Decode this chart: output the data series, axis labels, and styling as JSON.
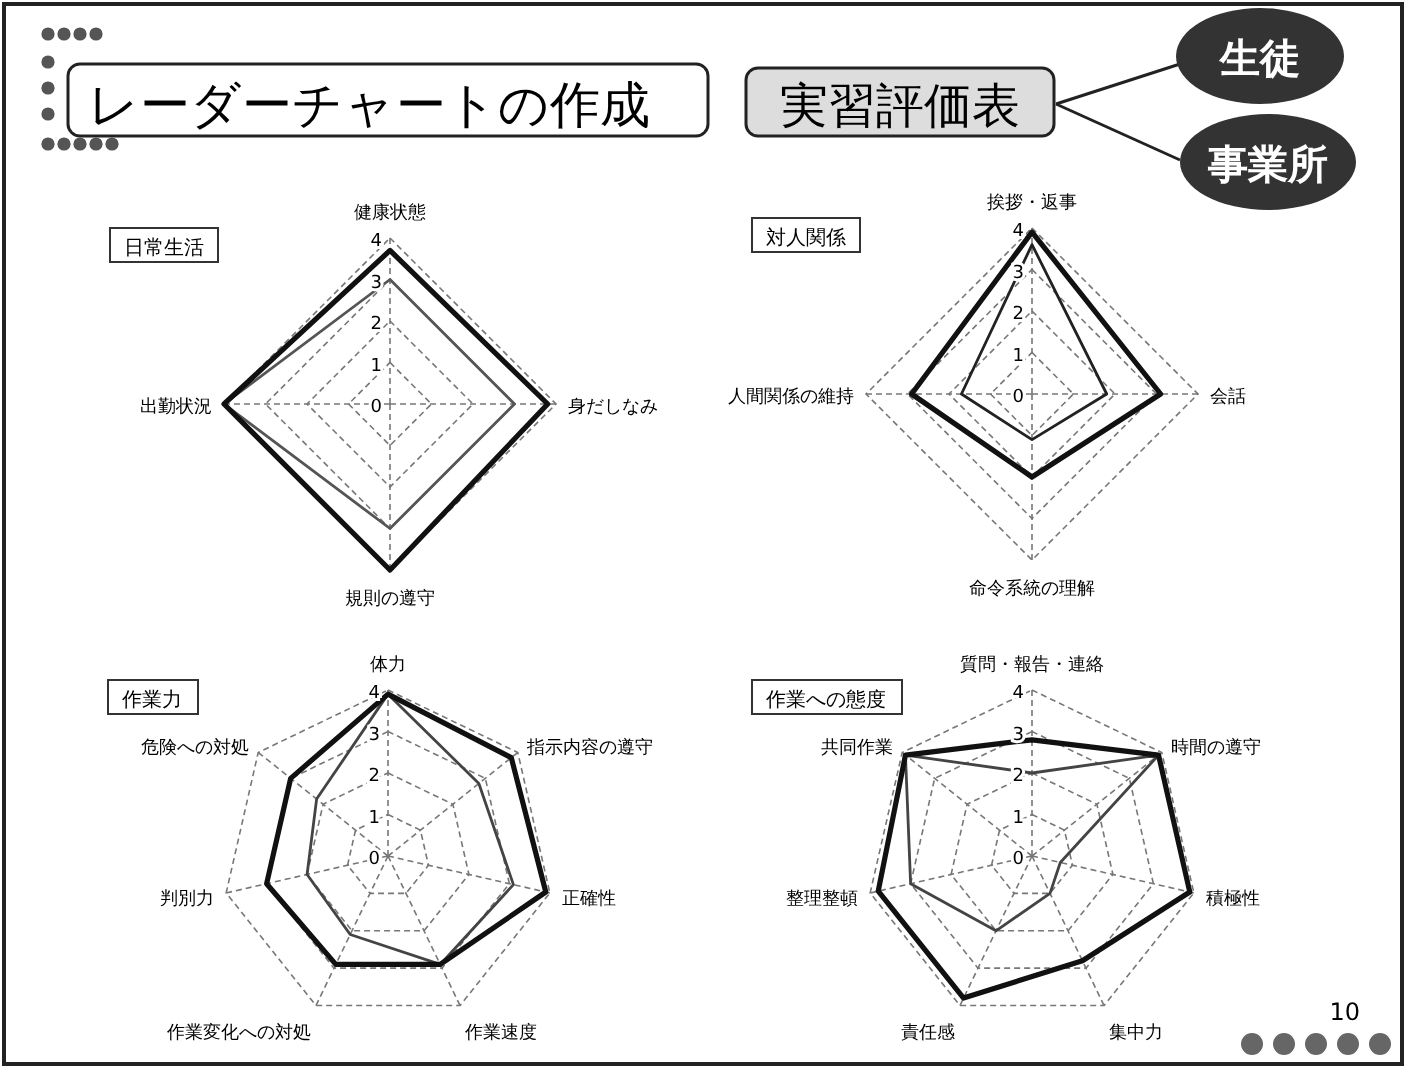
{
  "chart_data": [
    {
      "type": "other",
      "title": "レーダーチャートの作成",
      "annotations": [
        "実習評価表",
        "生徒",
        "事業所",
        "10"
      ]
    },
    {
      "type": "radar",
      "title": "日常生活",
      "categories": [
        "健康状態",
        "身だしなみ",
        "規則の遵守",
        "出勤状況"
      ],
      "ylim": [
        0,
        4
      ],
      "yticks": [
        0,
        1,
        2,
        3,
        4
      ],
      "grid": true,
      "series": [
        {
          "color": "#555555",
          "values": [
            3,
            3,
            3,
            4
          ]
        },
        {
          "color": "#111111",
          "values": [
            3.7,
            3.8,
            4,
            4
          ]
        }
      ]
    },
    {
      "type": "radar",
      "title": "対人関係",
      "categories": [
        "挨拶・返事",
        "会話",
        "命令系統の理解",
        "人間関係の維持"
      ],
      "ylim": [
        0,
        4
      ],
      "yticks": [
        0,
        1,
        2,
        3,
        4
      ],
      "grid": true,
      "series": [
        {
          "color": "#222222",
          "values": [
            3.6,
            1.8,
            1.1,
            1.7
          ]
        },
        {
          "color": "#111111",
          "values": [
            3.9,
            3.1,
            2,
            2.9
          ]
        }
      ]
    },
    {
      "type": "radar",
      "title": "作業力",
      "categories": [
        "体力",
        "指示内容の遵守",
        "正確性",
        "作業速度",
        "作業変化への対処",
        "判別力",
        "危険への対処"
      ],
      "ylim": [
        0,
        4
      ],
      "yticks": [
        0,
        1,
        2,
        3,
        4
      ],
      "grid": true,
      "series": [
        {
          "color": "#444444",
          "values": [
            3.9,
            2.8,
            3.1,
            2.9,
            2.1,
            2,
            2.2
          ]
        },
        {
          "color": "#111111",
          "values": [
            3.9,
            3.8,
            3.9,
            2.9,
            2.9,
            3,
            3
          ]
        }
      ]
    },
    {
      "type": "radar",
      "title": "作業への態度",
      "categories": [
        "質問・報告・連絡",
        "時間の遵守",
        "積極性",
        "集中力",
        "責任感",
        "整理整頓",
        "共同作業"
      ],
      "ylim": [
        0,
        4
      ],
      "yticks": [
        0,
        1,
        2,
        3,
        4
      ],
      "grid": true,
      "series": [
        {
          "color": "#444444",
          "values": [
            2,
            3.9,
            0.7,
            1,
            2,
            3,
            3.9
          ]
        },
        {
          "color": "#111111",
          "values": [
            2.8,
            3.9,
            3.9,
            2.8,
            3.8,
            3.8,
            3.9
          ]
        }
      ]
    }
  ]
}
